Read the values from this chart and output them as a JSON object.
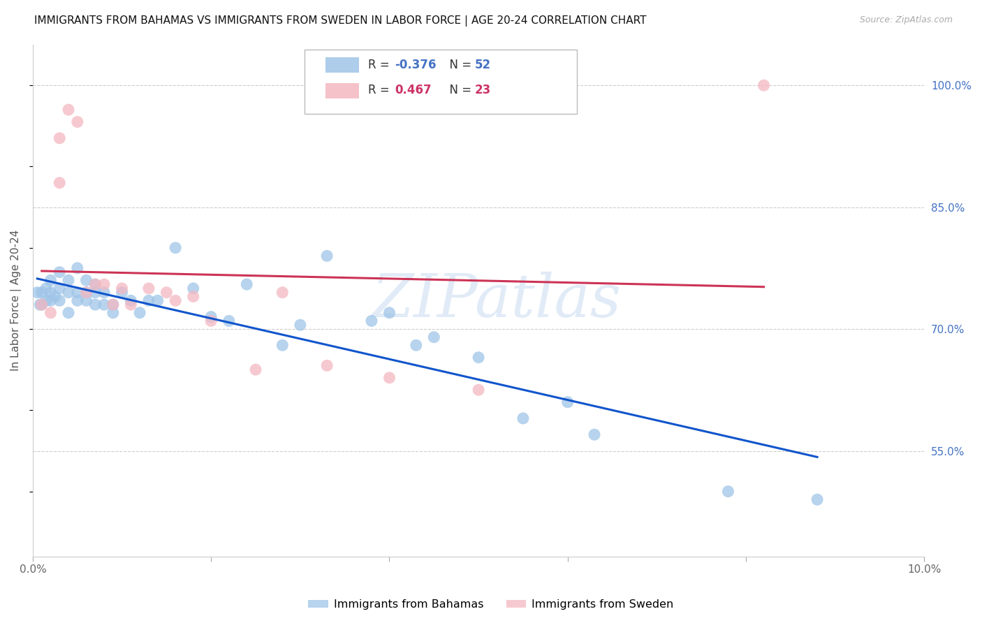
{
  "title": "IMMIGRANTS FROM BAHAMAS VS IMMIGRANTS FROM SWEDEN IN LABOR FORCE | AGE 20-24 CORRELATION CHART",
  "source": "Source: ZipAtlas.com",
  "ylabel": "In Labor Force | Age 20-24",
  "x_min": 0.0,
  "x_max": 0.1,
  "y_min": 0.42,
  "y_max": 1.05,
  "x_ticks": [
    0.0,
    0.02,
    0.04,
    0.06,
    0.08,
    0.1
  ],
  "x_tick_labels": [
    "0.0%",
    "",
    "",
    "",
    "",
    "10.0%"
  ],
  "y_tick_labels_right": [
    "55.0%",
    "70.0%",
    "85.0%",
    "100.0%"
  ],
  "y_tick_values_right": [
    0.55,
    0.7,
    0.85,
    1.0
  ],
  "bahamas_R": -0.376,
  "bahamas_N": 52,
  "sweden_R": 0.467,
  "sweden_N": 23,
  "bahamas_color": "#9fc5e8",
  "sweden_color": "#f4b8c1",
  "bahamas_line_color": "#1155cc",
  "sweden_line_color": "#cc3355",
  "watermark_text": "ZIPatlas",
  "legend_R_blue": "#4472c4",
  "legend_R_pink": "#cc3366",
  "bahamas_x": [
    0.0005,
    0.0008,
    0.001,
    0.001,
    0.0015,
    0.0015,
    0.002,
    0.002,
    0.002,
    0.0025,
    0.003,
    0.003,
    0.003,
    0.004,
    0.004,
    0.004,
    0.005,
    0.005,
    0.005,
    0.006,
    0.006,
    0.006,
    0.007,
    0.007,
    0.007,
    0.008,
    0.008,
    0.009,
    0.009,
    0.01,
    0.011,
    0.012,
    0.013,
    0.014,
    0.016,
    0.018,
    0.02,
    0.022,
    0.024,
    0.028,
    0.03,
    0.033,
    0.038,
    0.04,
    0.043,
    0.045,
    0.05,
    0.055,
    0.06,
    0.063,
    0.078,
    0.088
  ],
  "bahamas_y": [
    0.745,
    0.73,
    0.73,
    0.745,
    0.735,
    0.75,
    0.735,
    0.745,
    0.76,
    0.74,
    0.735,
    0.75,
    0.77,
    0.72,
    0.745,
    0.76,
    0.735,
    0.745,
    0.775,
    0.735,
    0.745,
    0.76,
    0.73,
    0.745,
    0.755,
    0.73,
    0.745,
    0.72,
    0.73,
    0.745,
    0.735,
    0.72,
    0.735,
    0.735,
    0.8,
    0.75,
    0.715,
    0.71,
    0.755,
    0.68,
    0.705,
    0.79,
    0.71,
    0.72,
    0.68,
    0.69,
    0.665,
    0.59,
    0.61,
    0.57,
    0.5,
    0.49
  ],
  "sweden_x": [
    0.001,
    0.002,
    0.003,
    0.003,
    0.004,
    0.005,
    0.006,
    0.007,
    0.008,
    0.009,
    0.01,
    0.011,
    0.013,
    0.015,
    0.016,
    0.018,
    0.02,
    0.025,
    0.028,
    0.033,
    0.04,
    0.05,
    0.082
  ],
  "sweden_y": [
    0.73,
    0.72,
    0.88,
    0.935,
    0.97,
    0.955,
    0.745,
    0.755,
    0.755,
    0.73,
    0.75,
    0.73,
    0.75,
    0.745,
    0.735,
    0.74,
    0.71,
    0.65,
    0.745,
    0.655,
    0.64,
    0.625,
    1.0
  ]
}
